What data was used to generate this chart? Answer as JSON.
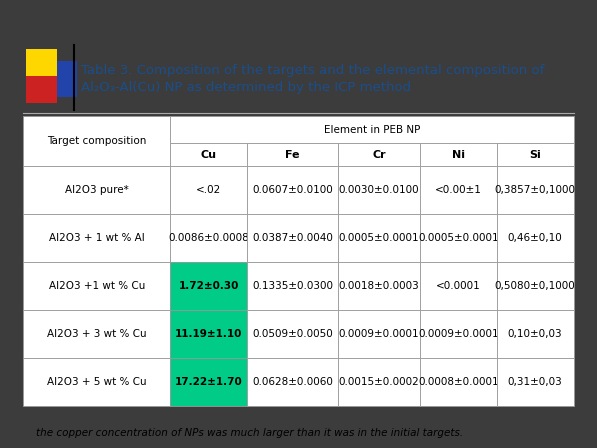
{
  "title_line1": "Table 3. Composition of the targets and the elemental composition of",
  "title_line2": "Al₂O₃-Al(Cu) NP as determined by the ICP method",
  "footnote": "the copper concentration of NPs was much larger than it was in the initial targets.",
  "col_headers_sub": [
    "Cu",
    "Fe",
    "Cr",
    "Ni",
    "Si"
  ],
  "rows": [
    [
      "Al2O3 pure*",
      "<.02",
      "0.0607±0.0100",
      "0.0030±0.0100",
      "<0.00±1",
      "0,3857±0,1000"
    ],
    [
      "Al2O3 + 1 wt % Al",
      "0.0086±0.0008",
      "0.0387±0.0040",
      "0.0005±0.0001",
      "0.0005±0.0001",
      "0,46±0,10"
    ],
    [
      "Al2O3 +1 wt % Cu",
      "1.72±0.30",
      "0.1335±0.0300",
      "0.0018±0.0003",
      "<0.0001",
      "0,5080±0,1000"
    ],
    [
      "Al2O3 + 3 wt % Cu",
      "11.19±1.10",
      "0.0509±0.0050",
      "0.0009±0.0001",
      "0.0009±0.0001",
      "0,10±0,03"
    ],
    [
      "Al2O3 + 5 wt % Cu",
      "17.22±1.70",
      "0.0628±0.0060",
      "0.0015±0.0002",
      "0.0008±0.0001",
      "0,31±0,03"
    ]
  ],
  "cu_highlight_rows": [
    2,
    3,
    4
  ],
  "cu_green": "#00CC88",
  "outer_bg": "#3C3C3C",
  "inner_bg": "#FFFFFF",
  "border_color": "#999999",
  "title_color": "#1A4E8C",
  "deco_yellow": "#FFD700",
  "deco_red": "#CC2222",
  "deco_blue": "#2244AA",
  "title_fontsize": 9.5,
  "table_fontsize": 7.5
}
